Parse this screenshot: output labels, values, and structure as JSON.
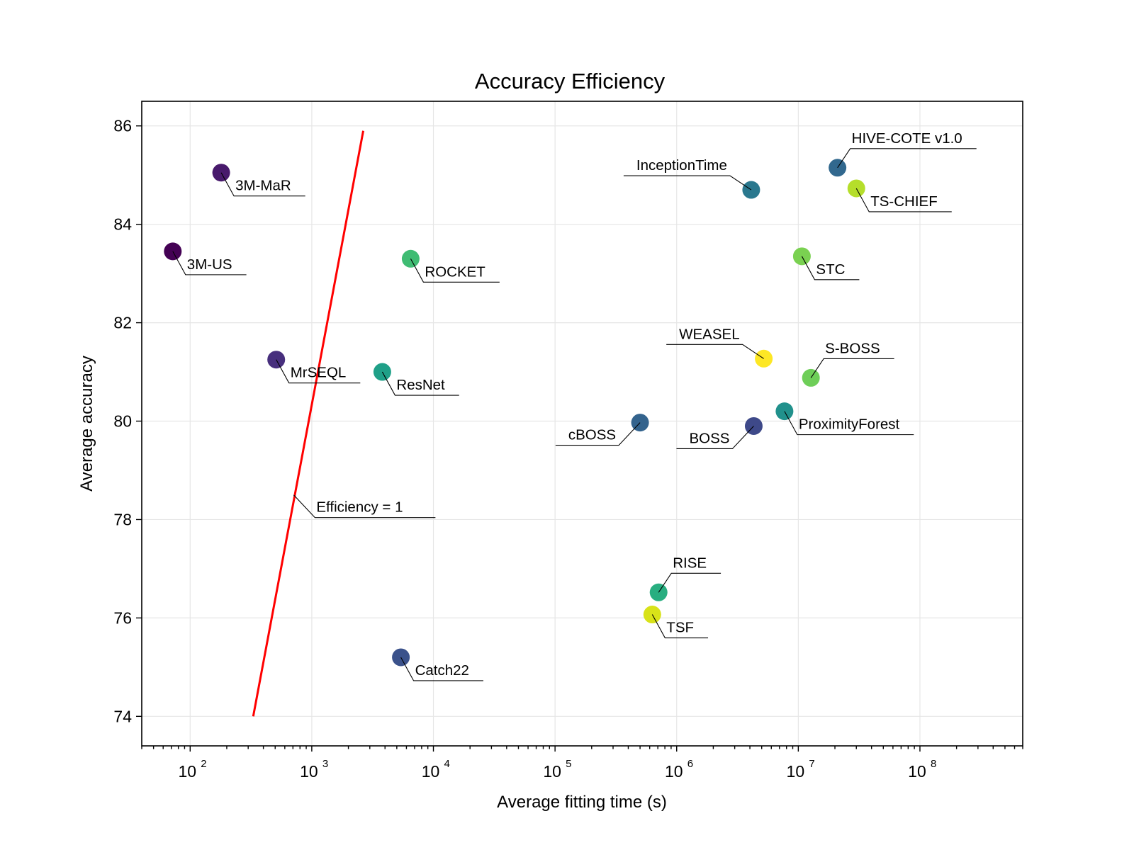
{
  "chart_data": {
    "type": "scatter",
    "title": "Accuracy Efficiency",
    "xlabel": "Average fitting time (s)",
    "ylabel": "Average accuracy",
    "x_scale": "log",
    "xlim": [
      40,
      700000000
    ],
    "ylim": [
      73.4,
      86.5
    ],
    "x_ticks": [
      100,
      1000,
      10000,
      100000,
      1000000,
      10000000,
      100000000
    ],
    "x_tick_labels": [
      {
        "base": "10",
        "exp": "2"
      },
      {
        "base": "10",
        "exp": "3"
      },
      {
        "base": "10",
        "exp": "4"
      },
      {
        "base": "10",
        "exp": "5"
      },
      {
        "base": "10",
        "exp": "6"
      },
      {
        "base": "10",
        "exp": "7"
      },
      {
        "base": "10",
        "exp": "8"
      }
    ],
    "y_ticks": [
      74,
      76,
      78,
      80,
      82,
      84,
      86
    ],
    "y_tick_labels": [
      "74",
      "76",
      "78",
      "80",
      "82",
      "84",
      "86"
    ],
    "grid": true,
    "points": [
      {
        "name": "3M-US",
        "x": 72,
        "y": 83.45,
        "color": "#440154",
        "label_side": "right-below"
      },
      {
        "name": "3M-MaR",
        "x": 180,
        "y": 85.05,
        "color": "#481a6c",
        "label_side": "right-below"
      },
      {
        "name": "MrSEQL",
        "x": 510,
        "y": 81.25,
        "color": "#472f7d",
        "label_side": "right-below"
      },
      {
        "name": "Catch22",
        "x": 5400,
        "y": 75.2,
        "color": "#3b528b",
        "label_side": "right-below"
      },
      {
        "name": "ResNet",
        "x": 3800,
        "y": 81.0,
        "color": "#1fa088",
        "label_side": "right-below"
      },
      {
        "name": "ROCKET",
        "x": 6500,
        "y": 83.3,
        "color": "#3fbc73",
        "label_side": "right-below"
      },
      {
        "name": "cBOSS",
        "x": 500000,
        "y": 79.97,
        "color": "#33638d",
        "label_side": "left-below"
      },
      {
        "name": "BOSS",
        "x": 4300000,
        "y": 79.9,
        "color": "#3e4989",
        "label_side": "left-below"
      },
      {
        "name": "InceptionTime",
        "x": 4100000,
        "y": 84.7,
        "color": "#2a788e",
        "label_side": "left-above"
      },
      {
        "name": "WEASEL",
        "x": 5200000,
        "y": 81.27,
        "color": "#fde725",
        "label_side": "left-above"
      },
      {
        "name": "ProximityForest",
        "x": 7700000,
        "y": 80.2,
        "color": "#21918c",
        "label_side": "right-below"
      },
      {
        "name": "STC",
        "x": 10700000,
        "y": 83.35,
        "color": "#7ad151",
        "label_side": "right-below"
      },
      {
        "name": "S-BOSS",
        "x": 12700000,
        "y": 80.88,
        "color": "#6ece58",
        "label_side": "right-above"
      },
      {
        "name": "HIVE-COTE v1.0",
        "x": 21000000,
        "y": 85.15,
        "color": "#31688e",
        "label_side": "right-above"
      },
      {
        "name": "TS-CHIEF",
        "x": 30000000,
        "y": 84.73,
        "color": "#b5de2b",
        "label_side": "right-below"
      },
      {
        "name": "RISE",
        "x": 710000,
        "y": 76.52,
        "color": "#28ae80",
        "label_side": "right-above"
      },
      {
        "name": "TSF",
        "x": 630000,
        "y": 76.07,
        "color": "#d8e219",
        "label_side": "right-below"
      }
    ],
    "efficiency_line": {
      "label": "Efficiency = 1",
      "color": "#ff0000",
      "points": [
        {
          "x": 330,
          "y": 74.0
        },
        {
          "x": 2650,
          "y": 85.9
        }
      ],
      "label_anchor": {
        "x": 710,
        "y": 78.5
      }
    }
  }
}
